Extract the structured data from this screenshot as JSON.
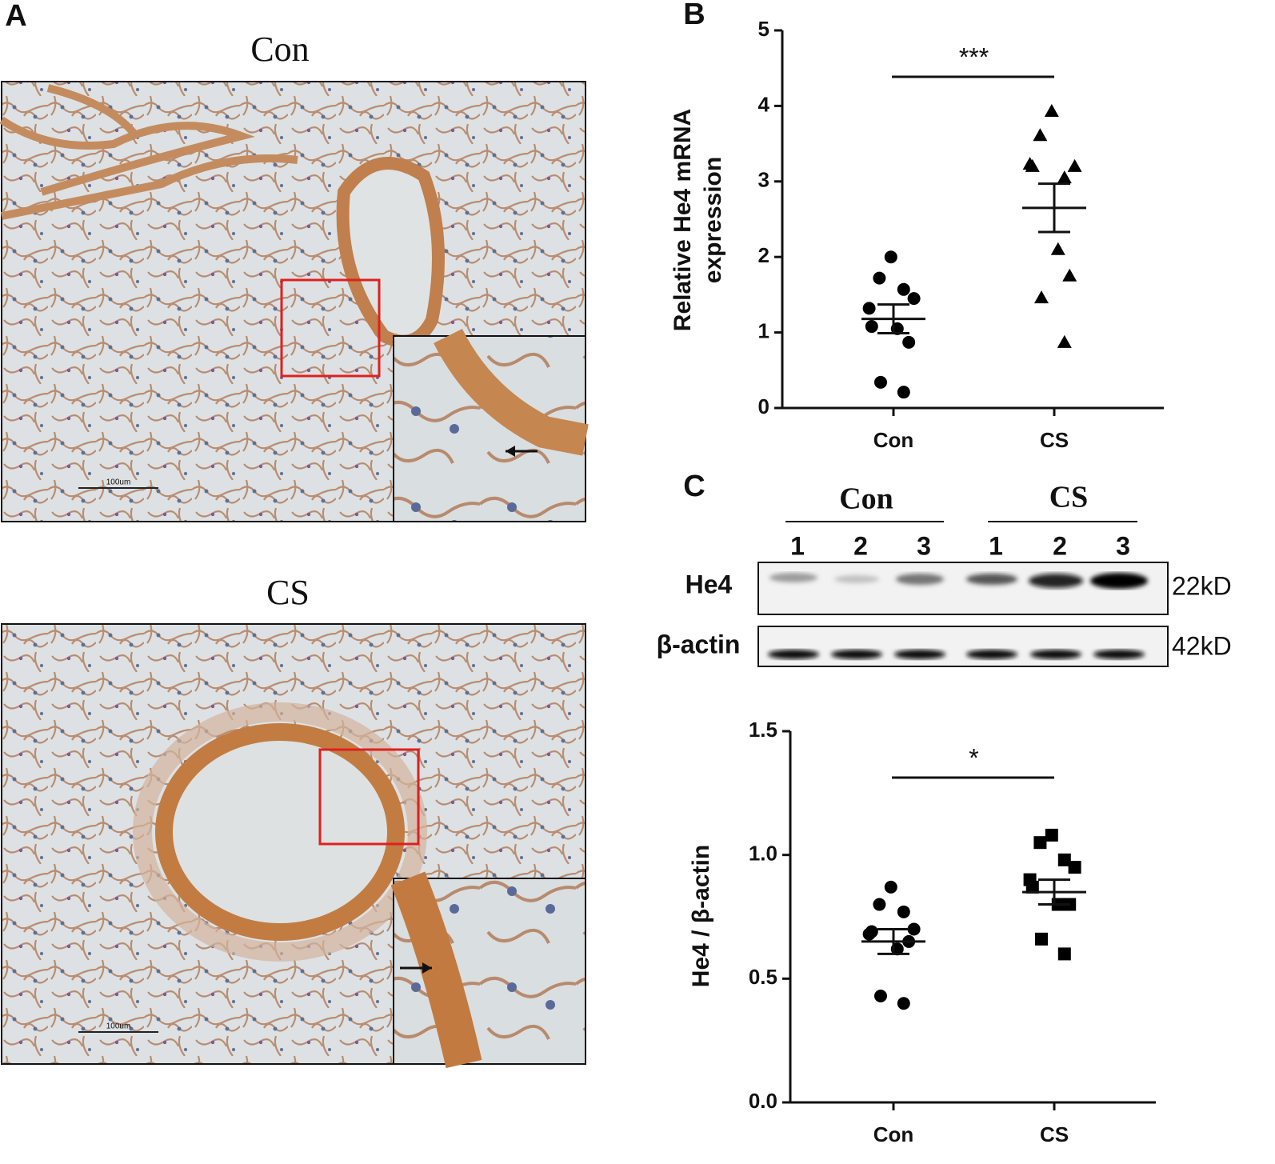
{
  "panel_labels": [
    "A",
    "B",
    "C"
  ],
  "histology": [
    {
      "title": "Con",
      "scale_bar": "100um"
    },
    {
      "title": "CS",
      "scale_bar": "100um"
    }
  ],
  "blot": {
    "groups": [
      "Con",
      "CS"
    ],
    "lanes": [
      "1",
      "2",
      "3",
      "1",
      "2",
      "3"
    ],
    "rows": [
      {
        "protein": "He4",
        "size": "22kD"
      },
      {
        "protein": "β-actin",
        "size": "42kD"
      }
    ]
  },
  "chart_data": [
    {
      "type": "strip",
      "y_label": [
        "Relative He4 mRNA",
        "expression"
      ],
      "categories": [
        "Con",
        "CS"
      ],
      "markers": [
        "circle",
        "triangle"
      ],
      "points": [
        [
          2.0,
          1.72,
          1.57,
          1.45,
          1.32,
          1.08,
          1.05,
          0.87,
          0.34,
          0.21
        ],
        [
          3.93,
          3.61,
          3.05,
          3.2,
          3.23,
          3.2,
          2.1,
          1.75,
          1.46,
          0.87
        ]
      ],
      "mean": [
        1.18,
        2.65
      ],
      "sem": [
        0.19,
        0.32
      ],
      "significance": "***",
      "ylim": [
        0,
        5
      ],
      "yticks": [
        0,
        1,
        2,
        3,
        4,
        5
      ]
    },
    {
      "type": "strip",
      "y_label": [
        "He4 / β-actin"
      ],
      "categories": [
        "Con",
        "CS"
      ],
      "markers": [
        "circle",
        "square"
      ],
      "points": [
        [
          0.87,
          0.8,
          0.77,
          0.7,
          0.68,
          0.69,
          0.62,
          0.65,
          0.43,
          0.4
        ],
        [
          1.08,
          1.05,
          0.98,
          0.95,
          0.9,
          0.87,
          0.8,
          0.8,
          0.66,
          0.6
        ]
      ],
      "mean": [
        0.65,
        0.85
      ],
      "sem": [
        0.05,
        0.05
      ],
      "significance": "*",
      "ylim": [
        0,
        1.5
      ],
      "yticks": [
        {
          "value": 0,
          "label": "0.0"
        },
        0.5,
        {
          "value": 1,
          "label": "1.0"
        },
        1.5
      ]
    }
  ]
}
